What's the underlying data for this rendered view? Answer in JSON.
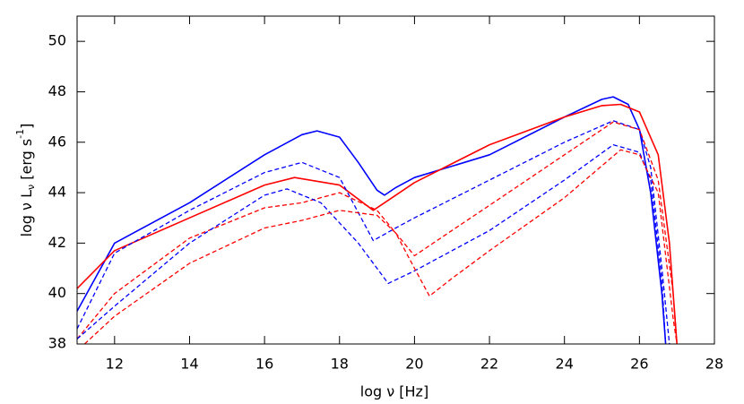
{
  "chart_data": {
    "type": "line",
    "xlabel": "log ν [Hz]",
    "ylabel": [
      "log ν L",
      "ν",
      " [erg s",
      "-1",
      "]"
    ],
    "xlim": [
      11,
      28
    ],
    "xticks": [
      12,
      14,
      16,
      18,
      20,
      22,
      24,
      26,
      28
    ],
    "ylim": [
      38,
      51
    ],
    "yticks": [
      38,
      40,
      42,
      44,
      46,
      48,
      50
    ],
    "series": [
      {
        "color": "#0000ff",
        "dash": false,
        "x": [
          11,
          12,
          14,
          16,
          17,
          17.4,
          18,
          18.5,
          19,
          19.2,
          19.5,
          20,
          22,
          24,
          25,
          25.3,
          25.7,
          26,
          26.3,
          26.6,
          26.7
        ],
        "values": [
          39.3,
          42,
          43.6,
          45.5,
          46.3,
          46.45,
          46.2,
          45.2,
          44.1,
          43.9,
          44.2,
          44.6,
          45.5,
          47.0,
          47.7,
          47.8,
          47.5,
          46.5,
          44,
          40,
          38
        ]
      },
      {
        "color": "#ff0000",
        "dash": false,
        "x": [
          11,
          12,
          14,
          16,
          16.8,
          18,
          18.9,
          19.5,
          20,
          22,
          24,
          25,
          25.5,
          26,
          26.5,
          26.8,
          27
        ],
        "values": [
          40.2,
          41.7,
          43.0,
          44.3,
          44.6,
          44.3,
          43.3,
          43.9,
          44.4,
          45.9,
          47.0,
          47.45,
          47.5,
          47.2,
          45.5,
          42,
          38
        ]
      },
      {
        "color": "#0000ff",
        "dash": true,
        "x": [
          11,
          12,
          14,
          16,
          17,
          18,
          18.9,
          19.5,
          20,
          22,
          24,
          25.3,
          26,
          26.3,
          26.6,
          26.8
        ],
        "values": [
          38.6,
          41.6,
          43.3,
          44.8,
          45.2,
          44.6,
          42.1,
          42.6,
          43.0,
          44.5,
          46.0,
          46.85,
          46.5,
          45,
          41,
          38
        ]
      },
      {
        "color": "#ff0000",
        "dash": true,
        "x": [
          11,
          12,
          14,
          16,
          17,
          18,
          19,
          20,
          21,
          22,
          24,
          25.3,
          26,
          26.5,
          26.9,
          27
        ],
        "values": [
          38.2,
          40.0,
          42.2,
          43.4,
          43.6,
          44.0,
          43.3,
          41.5,
          42.5,
          43.5,
          45.5,
          46.8,
          46.5,
          44.5,
          40,
          38
        ]
      },
      {
        "color": "#0000ff",
        "dash": true,
        "x": [
          11,
          12,
          14,
          16,
          16.6,
          17.5,
          18.5,
          19.3,
          20,
          22,
          24,
          25.3,
          26,
          26.3,
          26.6,
          26.7
        ],
        "values": [
          38.2,
          39.5,
          42.0,
          43.9,
          44.15,
          43.6,
          42,
          40.4,
          40.9,
          42.5,
          44.5,
          45.9,
          45.6,
          44.5,
          40.5,
          38
        ]
      },
      {
        "color": "#ff0000",
        "dash": true,
        "x": [
          11.2,
          12,
          14,
          16,
          17,
          18,
          19,
          19.5,
          20,
          20.4,
          21,
          22,
          24,
          25.5,
          26,
          26.5,
          26.9,
          27
        ],
        "values": [
          38,
          39.1,
          41.2,
          42.6,
          42.9,
          43.3,
          43.1,
          42.4,
          41,
          39.9,
          40.6,
          41.7,
          43.8,
          45.7,
          45.5,
          44,
          39,
          38
        ]
      }
    ]
  }
}
